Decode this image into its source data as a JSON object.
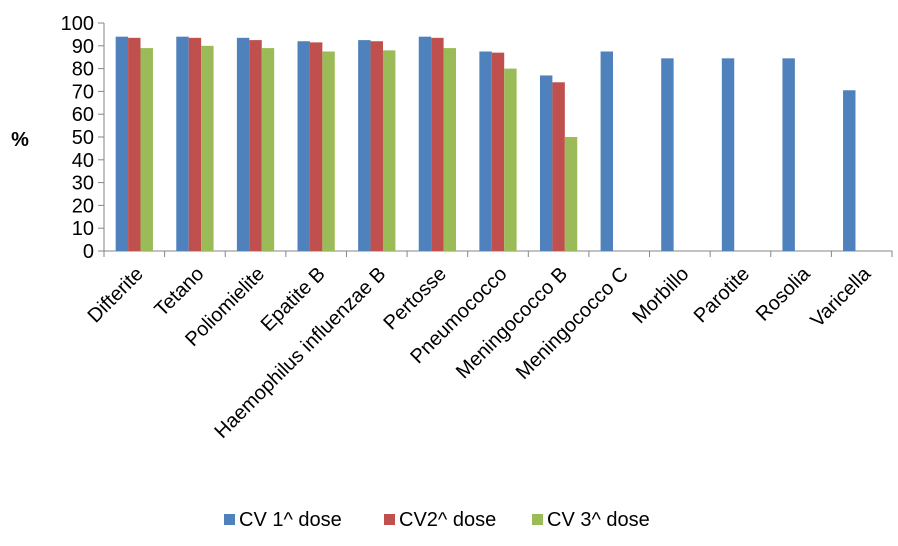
{
  "chart_data": {
    "type": "bar",
    "title": "",
    "xlabel": "",
    "ylabel": "%",
    "ylim": [
      0,
      100
    ],
    "yticks": [
      0,
      10,
      20,
      30,
      40,
      50,
      60,
      70,
      80,
      90,
      100
    ],
    "grid": false,
    "legend_position": "bottom",
    "categories": [
      "Difterite",
      "Tetano",
      "Poliomielite",
      "Epatite B",
      "Haemophilus influenzae B",
      "Pertosse",
      "Pneumococco",
      "Meningococco B",
      "Meningococco C",
      "Morbillo",
      "Parotite",
      "Rosolia",
      "Varicella"
    ],
    "series": [
      {
        "name": "CV 1^ dose",
        "color": "#4F81BD",
        "values": [
          94,
          94,
          93.5,
          92,
          92.5,
          94,
          87.5,
          77,
          87.5,
          84.5,
          84.5,
          84.5,
          70.5
        ]
      },
      {
        "name": "CV2^ dose",
        "color": "#C0504D",
        "values": [
          93.5,
          93.5,
          92.5,
          91.5,
          92,
          93.5,
          87,
          74,
          null,
          null,
          null,
          null,
          null
        ]
      },
      {
        "name": "CV 3^ dose",
        "color": "#9BBB59",
        "values": [
          89,
          90,
          89,
          87.5,
          88,
          89,
          80,
          50,
          null,
          null,
          null,
          null,
          null
        ]
      }
    ]
  }
}
